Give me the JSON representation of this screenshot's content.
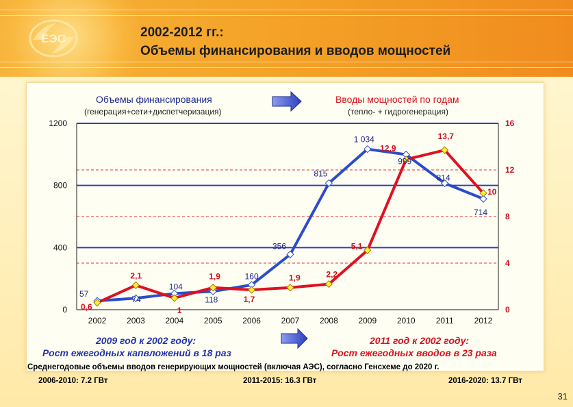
{
  "slide": {
    "title_line1": "2002-2012 гг.:",
    "title_line2": "Объемы финансирования и вводов мощностей",
    "logo_text": "ЕЭС",
    "page_number": "31",
    "colors": {
      "header": "#f4a428",
      "background": "#ffeeb8",
      "finance": "#2b4ccc",
      "capacity": "#dd1122",
      "arrow": "#3348c8"
    }
  },
  "captions": {
    "left_title": "Объемы финансирования",
    "left_sub": "(генерация+сети+диспетчеризация)",
    "right_title": "Вводы мощностей по годам",
    "right_sub": "(тепло- + гидрогенерация)"
  },
  "conclusions": {
    "left_line1": "2009 год к 2002 году:",
    "left_line2": "Рост ежегодных капвложений в 18 раз",
    "right_line1": "2011 год к 2002 году:",
    "right_line2": "Рост ежегодных вводов в 23 раза"
  },
  "footer": {
    "line1": "Среднегодовые объемы вводов генерирующих мощностей (включая АЭС), согласно Генсхеме до 2020 г.",
    "item1": "2006-2010: 7.2 ГВт",
    "item2": "2011-2015: 16.3 ГВт",
    "item3": "2016-2020: 13.7 ГВт"
  },
  "chart_data": {
    "type": "line",
    "categories": [
      "2002",
      "2003",
      "2004",
      "2005",
      "2006",
      "2007",
      "2008",
      "2009",
      "2010",
      "2011",
      "2012"
    ],
    "left_axis": {
      "ticks": [
        "0",
        "400",
        "800",
        "1200"
      ],
      "range": [
        0,
        1200
      ]
    },
    "right_axis": {
      "ticks": [
        "0",
        "4",
        "8",
        "12",
        "16"
      ],
      "range": [
        0,
        16
      ]
    },
    "grid": "horizontal",
    "series": [
      {
        "axis": "left",
        "color": "#2b4ccc",
        "values": [
          57,
          74,
          104,
          118,
          160,
          356,
          815,
          1034,
          999,
          814,
          714
        ],
        "labels": [
          "57",
          "74",
          "104",
          "118",
          "160",
          "356",
          "815",
          "1 034",
          "999",
          "814",
          "714"
        ]
      },
      {
        "axis": "right",
        "color": "#dd1122",
        "values": [
          0.6,
          2.1,
          1,
          1.9,
          1.7,
          1.9,
          2.2,
          5.1,
          12.9,
          13.7,
          10
        ],
        "labels": [
          "0,6",
          "2,1",
          "1",
          "1,9",
          "1,7",
          "1,9",
          "2,2",
          "5,1",
          "12,9",
          "13,7",
          "10"
        ]
      }
    ]
  }
}
